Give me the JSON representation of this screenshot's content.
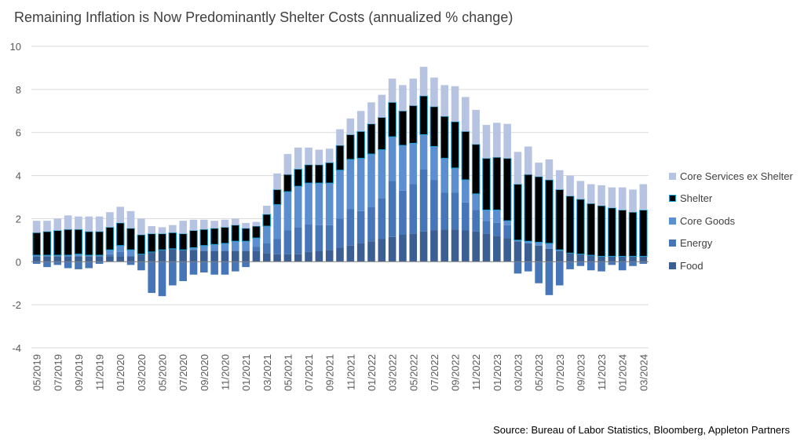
{
  "title": "Remaining Inflation is Now Predominantly Shelter Costs (annualized % change)",
  "source": "Source: Bureau of Labor Statistics, Bloomberg, Appleton Partners",
  "colors": {
    "Food": "#3b5f93",
    "Energy": "#4676b8",
    "Core Goods": "#5b8fd0",
    "Shelter": "#000000",
    "Shelter_border": "#1aa5d9",
    "Core Services ex Shelter": "#b6c4e2",
    "axis": "#7f7f7f",
    "grid": "#d9d9d9"
  },
  "chart_data": {
    "type": "bar",
    "stacked": true,
    "ylim": [
      -4,
      10
    ],
    "yticks": [
      -4,
      -2,
      0,
      2,
      4,
      6,
      8,
      10
    ],
    "ytick_labels": [
      "-4",
      "-2",
      "0",
      "2",
      "4",
      "6",
      "8",
      "10"
    ],
    "grid": true,
    "legend_position": "right",
    "categories": [
      "05/2019",
      "06/2019",
      "07/2019",
      "08/2019",
      "09/2019",
      "10/2019",
      "11/2019",
      "12/2019",
      "01/2020",
      "02/2020",
      "03/2020",
      "04/2020",
      "05/2020",
      "06/2020",
      "07/2020",
      "08/2020",
      "09/2020",
      "10/2020",
      "11/2020",
      "12/2020",
      "01/2021",
      "02/2021",
      "03/2021",
      "04/2021",
      "05/2021",
      "06/2021",
      "07/2021",
      "08/2021",
      "09/2021",
      "10/2021",
      "11/2021",
      "12/2021",
      "01/2022",
      "02/2022",
      "03/2022",
      "04/2022",
      "05/2022",
      "06/2022",
      "07/2022",
      "08/2022",
      "09/2022",
      "10/2022",
      "11/2022",
      "12/2022",
      "01/2023",
      "02/2023",
      "03/2023",
      "04/2023",
      "05/2023",
      "06/2023",
      "07/2023",
      "08/2023",
      "09/2023",
      "10/2023",
      "11/2023",
      "12/2023",
      "01/2024",
      "02/2024",
      "03/2024"
    ],
    "xtick_labels": [
      "05/2019",
      "07/2019",
      "09/2019",
      "11/2019",
      "01/2020",
      "03/2020",
      "05/2020",
      "07/2020",
      "09/2020",
      "11/2020",
      "01/2021",
      "03/2021",
      "05/2021",
      "07/2021",
      "09/2021",
      "11/2021",
      "01/2022",
      "03/2022",
      "05/2022",
      "07/2022",
      "09/2022",
      "11/2022",
      "01/2023",
      "03/2023",
      "05/2023",
      "07/2023",
      "09/2023",
      "11/2023",
      "01/2024",
      "03/2024"
    ],
    "series": [
      {
        "name": "Food",
        "values": [
          0.25,
          0.25,
          0.25,
          0.25,
          0.25,
          0.25,
          0.25,
          0.25,
          0.25,
          0.25,
          0.35,
          0.45,
          0.55,
          0.6,
          0.55,
          0.55,
          0.5,
          0.5,
          0.5,
          0.5,
          0.5,
          0.5,
          0.4,
          0.35,
          0.35,
          0.35,
          0.45,
          0.5,
          0.55,
          0.65,
          0.75,
          0.85,
          0.95,
          1.05,
          1.15,
          1.25,
          1.3,
          1.4,
          1.45,
          1.5,
          1.5,
          1.45,
          1.4,
          1.3,
          1.2,
          1.1,
          0.95,
          0.85,
          0.75,
          0.6,
          0.5,
          0.4,
          0.35,
          0.3,
          0.25,
          0.25,
          0.25,
          0.25,
          0.25
        ]
      },
      {
        "name": "Energy",
        "values": [
          -0.1,
          -0.25,
          -0.15,
          -0.3,
          -0.35,
          -0.3,
          -0.1,
          0.1,
          0.2,
          -0.15,
          -0.4,
          -1.45,
          -1.6,
          -1.1,
          -0.9,
          -0.6,
          -0.5,
          -0.6,
          -0.6,
          -0.45,
          -0.25,
          0.2,
          0.45,
          0.7,
          1.1,
          1.25,
          1.3,
          1.2,
          1.15,
          1.35,
          1.7,
          1.5,
          1.6,
          1.9,
          2.6,
          2.05,
          2.3,
          2.9,
          2.35,
          1.7,
          1.7,
          1.3,
          1.0,
          0.6,
          0.6,
          0.6,
          -0.55,
          -0.45,
          -1.0,
          -1.55,
          -1.1,
          -0.35,
          -0.2,
          -0.4,
          -0.45,
          -0.15,
          -0.4,
          -0.2,
          -0.1
        ]
      },
      {
        "name": "Core Goods",
        "values": [
          0.05,
          0.05,
          0.05,
          0.05,
          0.1,
          0.05,
          0.05,
          0.2,
          0.3,
          0.3,
          0.0,
          0.0,
          0.0,
          0.0,
          0.0,
          0.1,
          0.25,
          0.3,
          0.35,
          0.45,
          0.45,
          0.4,
          0.8,
          1.6,
          1.8,
          1.9,
          1.9,
          1.95,
          1.95,
          2.25,
          2.3,
          2.45,
          2.45,
          2.25,
          2.05,
          2.1,
          1.9,
          1.6,
          1.55,
          1.6,
          1.15,
          1.05,
          0.75,
          0.5,
          0.6,
          0.2,
          0.05,
          0.1,
          0.15,
          0.25,
          0.05,
          0.0,
          0.0,
          0.0,
          0.0,
          0.0,
          0.0,
          0.0,
          0.0
        ]
      },
      {
        "name": "Shelter",
        "values": [
          1.05,
          1.1,
          1.15,
          1.2,
          1.15,
          1.1,
          1.1,
          1.05,
          1.05,
          1.0,
          0.9,
          0.85,
          0.75,
          0.75,
          0.75,
          0.8,
          0.75,
          0.75,
          0.75,
          0.75,
          0.6,
          0.55,
          0.55,
          0.7,
          0.8,
          0.8,
          0.85,
          0.85,
          0.95,
          1.15,
          1.15,
          1.25,
          1.4,
          1.5,
          1.6,
          1.6,
          1.75,
          1.8,
          1.85,
          1.95,
          2.15,
          2.25,
          2.3,
          2.4,
          2.45,
          2.9,
          2.6,
          3.1,
          3.05,
          2.95,
          2.8,
          2.65,
          2.55,
          2.4,
          2.35,
          2.25,
          2.15,
          2.05,
          2.15
        ]
      },
      {
        "name": "Core Services ex Shelter",
        "values": [
          0.55,
          0.5,
          0.55,
          0.65,
          0.6,
          0.7,
          0.7,
          0.7,
          0.75,
          0.8,
          0.75,
          0.35,
          0.3,
          0.35,
          0.6,
          0.5,
          0.45,
          0.35,
          0.35,
          0.3,
          0.25,
          0.2,
          0.4,
          0.75,
          0.95,
          1.0,
          0.8,
          0.7,
          0.65,
          0.75,
          0.75,
          0.95,
          1.0,
          1.05,
          1.1,
          1.2,
          1.25,
          1.35,
          1.35,
          1.45,
          1.65,
          1.6,
          1.6,
          1.55,
          1.6,
          1.6,
          1.5,
          1.3,
          0.65,
          0.95,
          0.9,
          0.95,
          0.85,
          0.9,
          0.95,
          0.95,
          1.05,
          1.05,
          1.2
        ]
      }
    ]
  }
}
